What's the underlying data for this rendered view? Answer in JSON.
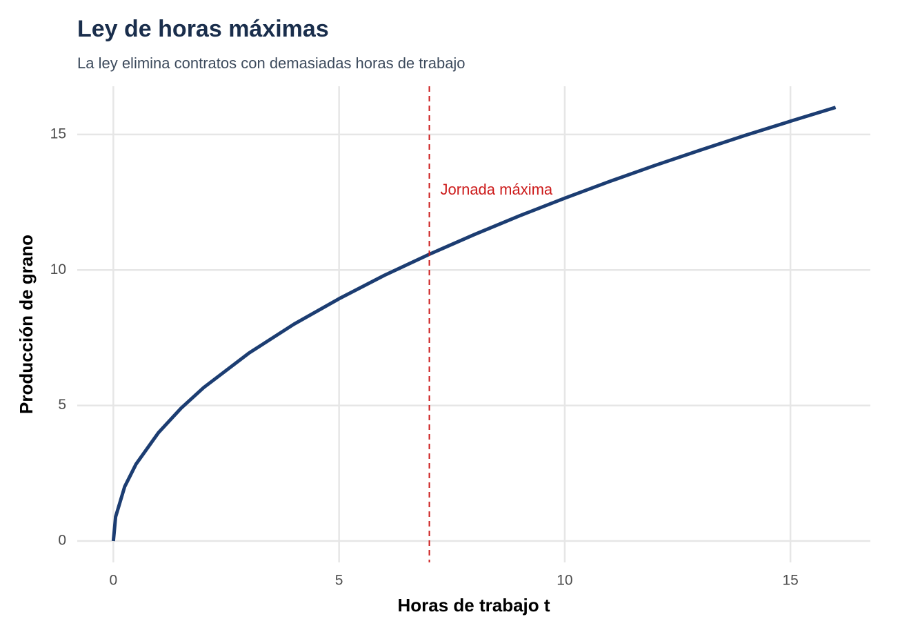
{
  "chart_data": {
    "type": "line",
    "title": "Ley de horas máximas",
    "subtitle": "La ley elimina contratos con demasiadas horas de trabajo",
    "x_label": "Horas de trabajo t",
    "y_label": "Producción de grano",
    "x": [
      0,
      0.05,
      0.25,
      0.5,
      1,
      1.5,
      2,
      3,
      4,
      5,
      6,
      7,
      8,
      9,
      10,
      11,
      12,
      13,
      14,
      15,
      16
    ],
    "series": [
      {
        "name": "Producción",
        "color": "#1c3d72",
        "values": [
          0,
          0.89,
          2,
          2.83,
          4,
          4.9,
          5.66,
          6.93,
          8,
          8.94,
          9.8,
          10.58,
          11.31,
          12,
          12.65,
          13.27,
          13.86,
          14.42,
          14.97,
          15.49,
          16
        ]
      }
    ],
    "xlim": [
      -0.8,
      16.77
    ],
    "ylim": [
      -0.79,
      16.78
    ],
    "xticks": [
      0,
      5,
      10,
      15
    ],
    "yticks": [
      0,
      5,
      10,
      15
    ],
    "grid": true,
    "vline": {
      "x": 7,
      "label": "Jornada máxima",
      "color": "#cc1a1a"
    }
  }
}
